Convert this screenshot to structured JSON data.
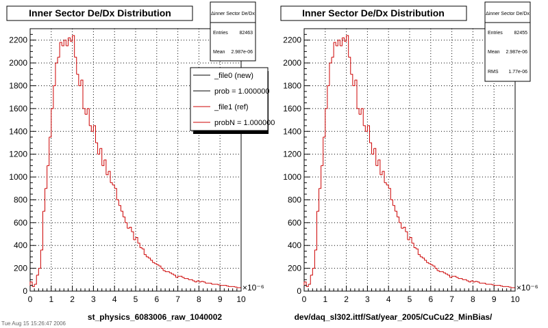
{
  "footer_note": "Tue Aug 15 15:26:47 2006",
  "chart_data": [
    {
      "type": "histogram",
      "title": "Inner Sector De/Dx Distribution",
      "xlabel": "st_physics_6083006_raw_1040002",
      "x_exponent_label": "×10⁻⁶",
      "xlim": [
        0,
        10
      ],
      "ylim": [
        0,
        2300
      ],
      "xticks": [
        "0",
        "1",
        "2",
        "3",
        "4",
        "5",
        "6",
        "7",
        "8",
        "9",
        "10"
      ],
      "yticks": [
        "0",
        "200",
        "400",
        "600",
        "800",
        "1000",
        "1200",
        "1400",
        "1600",
        "1800",
        "2000",
        "2200"
      ],
      "stats": {
        "title": "Δinner Sector De/Dx",
        "rows": [
          {
            "label": "Entries",
            "value": "82463"
          },
          {
            "label": "Mean",
            "value": "2.987e-06"
          }
        ]
      },
      "legend": {
        "placement": "top-right",
        "entries": [
          {
            "label": "_file0 (new)",
            "color": "#000000"
          },
          {
            "label": "prob = 1.000000",
            "color": "#000000"
          },
          {
            "label": "_file1 (ref)",
            "color": "#cc0000"
          },
          {
            "label": "probN = 1.000000",
            "color": "#cc0000"
          }
        ]
      },
      "series": [
        {
          "color": "#cc0000",
          "bins": [
            0,
            0.1,
            0.2,
            0.3,
            0.4,
            0.5,
            0.6,
            0.7,
            0.8,
            0.9,
            1.0,
            1.1,
            1.2,
            1.3,
            1.4,
            1.5,
            1.6,
            1.7,
            1.8,
            1.9,
            2.0,
            2.1,
            2.2,
            2.3,
            2.4,
            2.5,
            2.6,
            2.7,
            2.8,
            2.9,
            3.0,
            3.1,
            3.2,
            3.3,
            3.4,
            3.5,
            3.6,
            3.7,
            3.8,
            3.9,
            4.0,
            4.1,
            4.2,
            4.3,
            4.4,
            4.5,
            4.6,
            4.7,
            4.8,
            4.9,
            5.0,
            5.1,
            5.2,
            5.3,
            5.4,
            5.5,
            5.6,
            5.7,
            5.8,
            5.9,
            6.0,
            6.1,
            6.2,
            6.3,
            6.4,
            6.5,
            6.6,
            6.7,
            6.8,
            6.9,
            7.0,
            7.1,
            7.2,
            7.3,
            7.4,
            7.5,
            7.6,
            7.7,
            7.8,
            7.9,
            8.0,
            8.1,
            8.2,
            8.3,
            8.4,
            8.5,
            8.6,
            8.7,
            8.8,
            8.9,
            9.0,
            9.1,
            9.2,
            9.3,
            9.4,
            9.5,
            9.6,
            9.7,
            9.8,
            9.9
          ],
          "values": [
            80,
            40,
            60,
            140,
            200,
            360,
            700,
            900,
            1100,
            1350,
            1600,
            1800,
            2000,
            2050,
            2180,
            2150,
            2200,
            2150,
            2220,
            2190,
            2240,
            2050,
            1900,
            1800,
            1850,
            1600,
            1550,
            1600,
            1450,
            1400,
            1450,
            1300,
            1200,
            1250,
            1100,
            1150,
            1020,
            1050,
            950,
            930,
            900,
            800,
            750,
            700,
            650,
            600,
            550,
            560,
            520,
            450,
            470,
            420,
            380,
            370,
            320,
            300,
            290,
            270,
            250,
            240,
            230,
            220,
            200,
            180,
            170,
            170,
            160,
            150,
            140,
            120,
            130,
            130,
            120,
            110,
            110,
            100,
            100,
            90,
            80,
            90,
            80,
            85,
            80,
            70,
            70,
            70,
            60,
            60,
            60,
            55,
            50,
            50,
            50,
            45,
            40,
            40,
            40,
            35,
            30,
            30
          ]
        }
      ]
    },
    {
      "type": "histogram",
      "title": "Inner Sector De/Dx Distribution",
      "xlabel": "dev/daq_sl302.ittf/Sat/year_2005/CuCu22_MinBias/",
      "x_exponent_label": "×10⁻⁶",
      "xlim": [
        0,
        10
      ],
      "ylim": [
        0,
        2300
      ],
      "xticks": [
        "0",
        "1",
        "2",
        "3",
        "4",
        "5",
        "6",
        "7",
        "8",
        "9",
        "10"
      ],
      "yticks": [
        "0",
        "200",
        "400",
        "600",
        "800",
        "1000",
        "1200",
        "1400",
        "1600",
        "1800",
        "2000",
        "2200"
      ],
      "stats": {
        "title": "Δinner Sector De/Dx",
        "rows": [
          {
            "label": "Entries",
            "value": "82455"
          },
          {
            "label": "Mean",
            "value": "2.987e-06"
          },
          {
            "label": "RMS",
            "value": "1.77e-06"
          }
        ]
      },
      "series": [
        {
          "color": "#cc0000",
          "bins": [
            0,
            0.1,
            0.2,
            0.3,
            0.4,
            0.5,
            0.6,
            0.7,
            0.8,
            0.9,
            1.0,
            1.1,
            1.2,
            1.3,
            1.4,
            1.5,
            1.6,
            1.7,
            1.8,
            1.9,
            2.0,
            2.1,
            2.2,
            2.3,
            2.4,
            2.5,
            2.6,
            2.7,
            2.8,
            2.9,
            3.0,
            3.1,
            3.2,
            3.3,
            3.4,
            3.5,
            3.6,
            3.7,
            3.8,
            3.9,
            4.0,
            4.1,
            4.2,
            4.3,
            4.4,
            4.5,
            4.6,
            4.7,
            4.8,
            4.9,
            5.0,
            5.1,
            5.2,
            5.3,
            5.4,
            5.5,
            5.6,
            5.7,
            5.8,
            5.9,
            6.0,
            6.1,
            6.2,
            6.3,
            6.4,
            6.5,
            6.6,
            6.7,
            6.8,
            6.9,
            7.0,
            7.1,
            7.2,
            7.3,
            7.4,
            7.5,
            7.6,
            7.7,
            7.8,
            7.9,
            8.0,
            8.1,
            8.2,
            8.3,
            8.4,
            8.5,
            8.6,
            8.7,
            8.8,
            8.9,
            9.0,
            9.1,
            9.2,
            9.3,
            9.4,
            9.5,
            9.6,
            9.7,
            9.8,
            9.9
          ],
          "values": [
            80,
            40,
            60,
            140,
            200,
            360,
            700,
            900,
            1100,
            1350,
            1600,
            1800,
            2000,
            2050,
            2180,
            2150,
            2200,
            2150,
            2220,
            2190,
            2240,
            2050,
            1900,
            1800,
            1850,
            1600,
            1550,
            1600,
            1450,
            1400,
            1450,
            1300,
            1200,
            1250,
            1100,
            1150,
            1020,
            1050,
            950,
            930,
            900,
            800,
            750,
            700,
            650,
            600,
            550,
            560,
            520,
            450,
            470,
            420,
            380,
            370,
            320,
            300,
            290,
            270,
            250,
            240,
            230,
            220,
            200,
            180,
            170,
            170,
            160,
            150,
            140,
            120,
            130,
            130,
            120,
            110,
            110,
            100,
            100,
            90,
            80,
            90,
            80,
            85,
            80,
            70,
            70,
            70,
            60,
            60,
            60,
            55,
            50,
            50,
            50,
            45,
            40,
            40,
            40,
            35,
            30,
            30
          ]
        }
      ]
    }
  ]
}
